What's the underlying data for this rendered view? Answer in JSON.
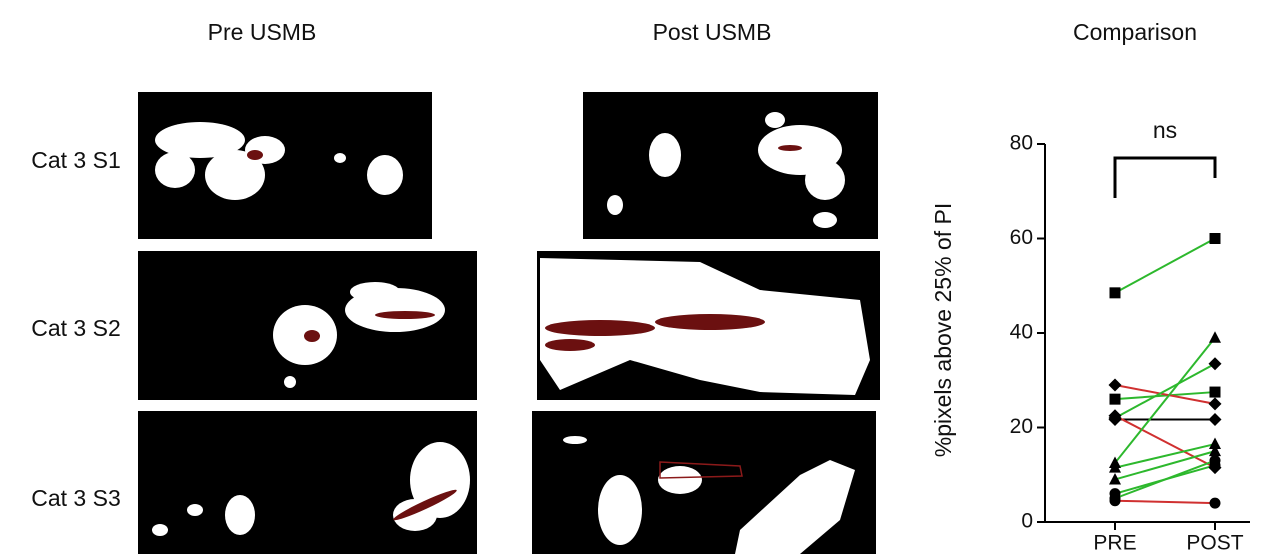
{
  "panels": {
    "columns": [
      "Pre USMB",
      "Post USMB",
      "Comparison"
    ],
    "rows": [
      "Cat 3 S1",
      "Cat 3 S2",
      "Cat 3 S3"
    ]
  },
  "chart_data": {
    "type": "paired-scatter",
    "y_label": "%pixels above 25% of PI",
    "annotation": "ns",
    "categories": [
      "PRE",
      "POST"
    ],
    "ylim": [
      0,
      80
    ],
    "yticks": [
      0,
      20,
      40,
      60,
      80
    ],
    "series": [
      {
        "marker": "square",
        "color": "#2db82d",
        "values": [
          48.5,
          60
        ]
      },
      {
        "marker": "square",
        "color": "#2db82d",
        "values": [
          26,
          27.5
        ]
      },
      {
        "marker": "diamond",
        "color": "#d03030",
        "values": [
          29,
          25
        ]
      },
      {
        "marker": "diamond",
        "color": "#2db82d",
        "values": [
          22,
          33.5
        ]
      },
      {
        "marker": "diamond",
        "color": "#000000",
        "values": [
          21.7,
          21.7
        ]
      },
      {
        "marker": "diamond",
        "color": "#d03030",
        "values": [
          22.5,
          11.5
        ]
      },
      {
        "marker": "triangle",
        "color": "#2db82d",
        "values": [
          12.5,
          39
        ]
      },
      {
        "marker": "triangle",
        "color": "#2db82d",
        "values": [
          11.5,
          16.5
        ]
      },
      {
        "marker": "triangle",
        "color": "#2db82d",
        "values": [
          9,
          15
        ]
      },
      {
        "marker": "circle",
        "color": "#2db82d",
        "values": [
          6,
          12
        ]
      },
      {
        "marker": "circle",
        "color": "#2db82d",
        "values": [
          5,
          13
        ]
      },
      {
        "marker": "circle",
        "color": "#d03030",
        "values": [
          4.5,
          4
        ]
      }
    ]
  }
}
